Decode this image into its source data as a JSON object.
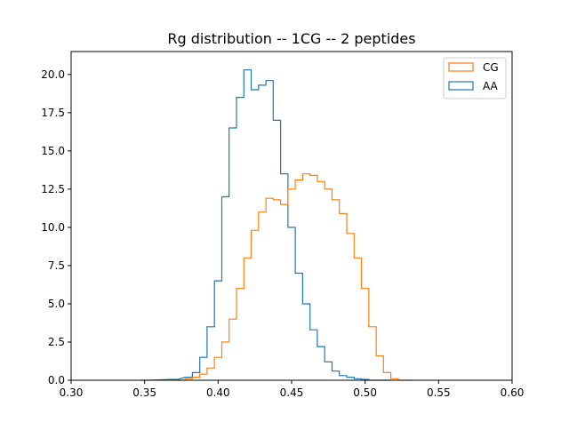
{
  "chart_data": {
    "type": "line",
    "subtype": "step-histogram",
    "title": "Rg distribution -- 1CG -- 2 peptides",
    "xlabel": "",
    "ylabel": "",
    "xlim": [
      0.3,
      0.6
    ],
    "ylim": [
      0.0,
      21.5
    ],
    "x_ticks": [
      "0.30",
      "0.35",
      "0.40",
      "0.45",
      "0.50",
      "0.55",
      "0.60"
    ],
    "y_ticks": [
      "0.0",
      "2.5",
      "5.0",
      "7.5",
      "10.0",
      "12.5",
      "15.0",
      "17.5",
      "20.0"
    ],
    "grid": false,
    "legend_position": "upper right",
    "series": [
      {
        "name": "CG",
        "color": "#ff7f0e",
        "x": [
          0.375,
          0.38,
          0.385,
          0.39,
          0.395,
          0.4,
          0.405,
          0.41,
          0.415,
          0.42,
          0.425,
          0.43,
          0.435,
          0.44,
          0.445,
          0.45,
          0.455,
          0.46,
          0.465,
          0.47,
          0.475,
          0.48,
          0.485,
          0.49,
          0.495,
          0.5,
          0.505,
          0.51,
          0.515,
          0.52,
          0.525,
          0.53
        ],
        "y": [
          0.0,
          0.1,
          0.2,
          0.4,
          0.8,
          1.5,
          2.5,
          4.0,
          6.0,
          8.0,
          9.8,
          11.0,
          11.9,
          11.8,
          11.5,
          12.5,
          13.1,
          13.5,
          13.4,
          13.0,
          12.5,
          11.8,
          10.9,
          9.6,
          8.0,
          6.0,
          3.5,
          1.6,
          0.5,
          0.1,
          0.0,
          0.0
        ]
      },
      {
        "name": "AA",
        "color": "#1f77b4",
        "x": [
          0.35,
          0.37,
          0.38,
          0.385,
          0.39,
          0.395,
          0.4,
          0.405,
          0.41,
          0.415,
          0.42,
          0.425,
          0.43,
          0.435,
          0.44,
          0.445,
          0.45,
          0.455,
          0.46,
          0.465,
          0.47,
          0.475,
          0.48,
          0.485,
          0.49,
          0.495,
          0.5,
          0.505,
          0.51,
          0.515
        ],
        "y": [
          0.0,
          0.05,
          0.2,
          0.5,
          1.5,
          3.5,
          6.5,
          12.0,
          16.5,
          18.5,
          20.3,
          19.0,
          19.3,
          19.6,
          17.0,
          13.5,
          10.0,
          7.0,
          5.0,
          3.3,
          2.2,
          1.2,
          0.6,
          0.3,
          0.2,
          0.1,
          0.05,
          0.0,
          0.0,
          0.0
        ]
      }
    ]
  }
}
